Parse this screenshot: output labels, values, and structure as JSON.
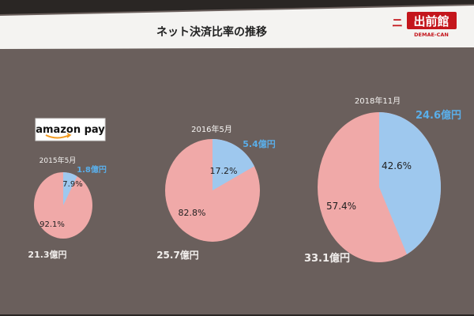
{
  "slide": {
    "title": "ネット決済比率の推移",
    "logo": {
      "brand_kanji": "出前館",
      "brand_latin": "DEMAE-CAN",
      "sub_mark": "ニ"
    },
    "payment_badge": "amazon pay"
  },
  "colors": {
    "screen": "#6a5f5c",
    "title_band": "#f4f3f1",
    "online": "#9ec8ee",
    "offline": "#f0a9a8",
    "online_label": "#5aaee9",
    "total_label": "#f1eeec",
    "logo_red": "#c4161c"
  },
  "chart_data": [
    {
      "type": "pie",
      "title": "2015年5月",
      "slices": [
        {
          "label": "7.9%",
          "value": 7.9,
          "category": "online"
        },
        {
          "label": "92.1%",
          "value": 92.1,
          "category": "offline"
        }
      ],
      "online_amount": "1.8億円",
      "total_amount": "21.3億円"
    },
    {
      "type": "pie",
      "title": "2016年5月",
      "slices": [
        {
          "label": "17.2%",
          "value": 17.2,
          "category": "online"
        },
        {
          "label": "82.8%",
          "value": 82.8,
          "category": "offline"
        }
      ],
      "online_amount": "5.4億円",
      "total_amount": "25.7億円"
    },
    {
      "type": "pie",
      "title": "2018年11月",
      "slices": [
        {
          "label": "42.6%",
          "value": 42.6,
          "category": "online"
        },
        {
          "label": "57.4%",
          "value": 57.4,
          "category": "offline"
        }
      ],
      "online_amount": "24.6億円",
      "total_amount": "33.1億円"
    }
  ]
}
